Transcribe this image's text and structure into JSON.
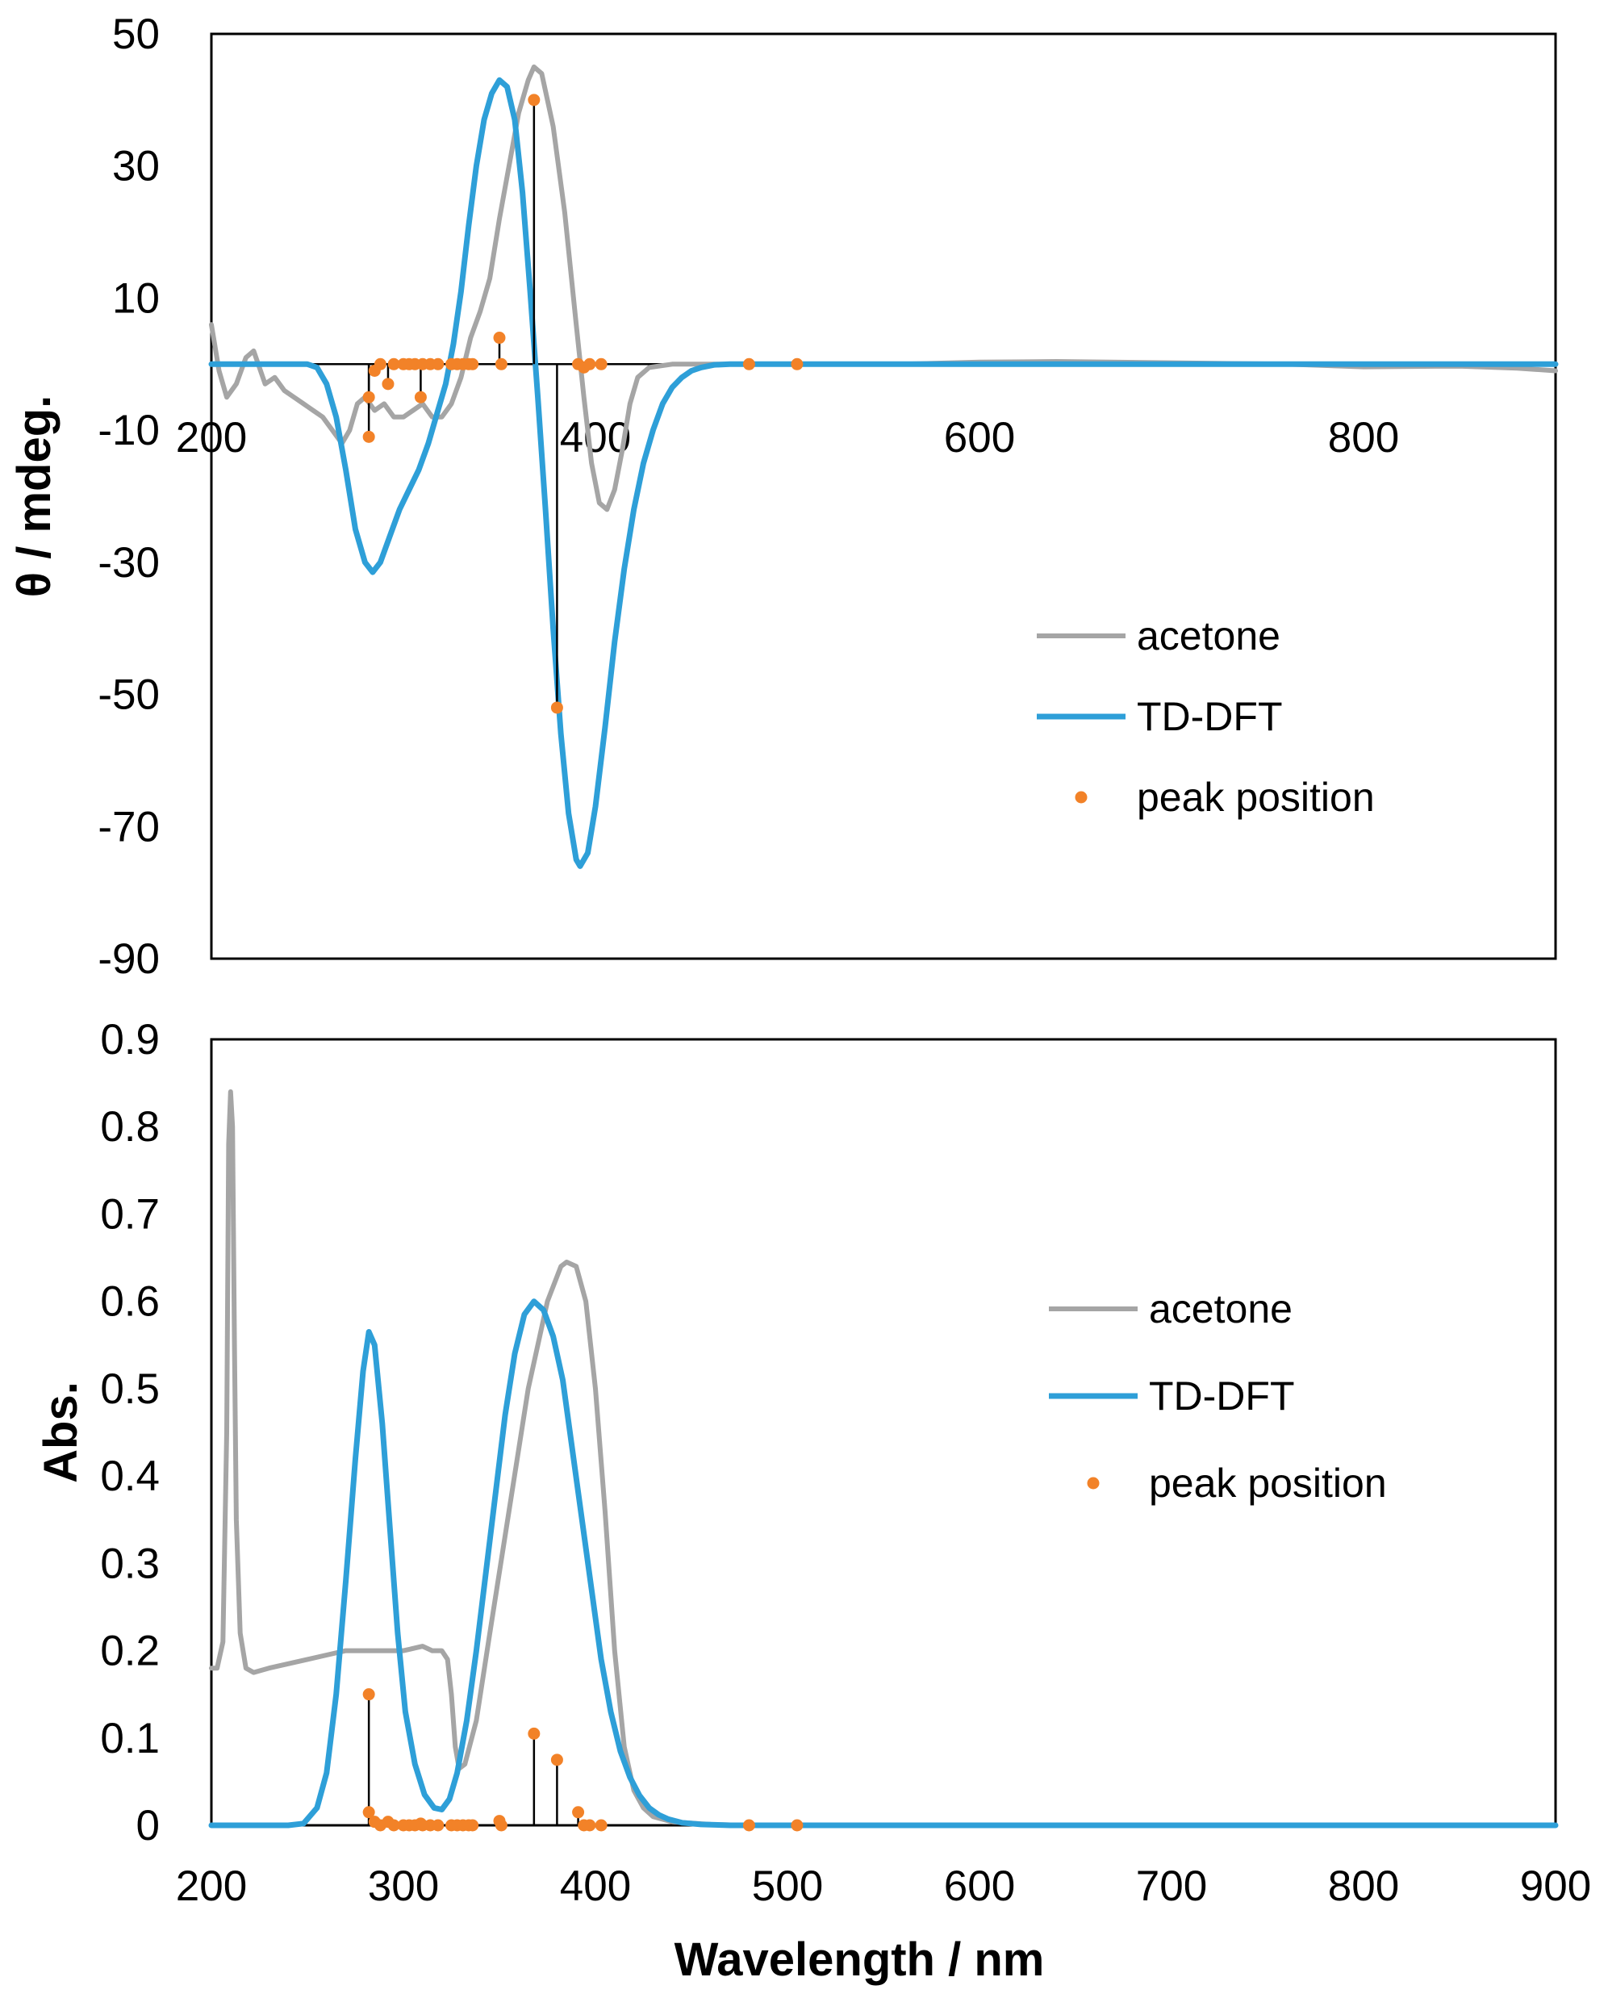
{
  "chart_data": [
    {
      "type": "line",
      "panel": "top",
      "title": "",
      "xlabel": "",
      "ylabel": "θ / mdeg.",
      "xlim": [
        200,
        900
      ],
      "ylim": [
        -90,
        50
      ],
      "yticks": [
        50,
        30,
        10,
        -10,
        -30,
        -50,
        -70,
        -90
      ],
      "xticks": [
        200,
        400,
        600,
        800
      ],
      "x_tick_labels_at_y": 0,
      "legend_position": "right",
      "series": [
        {
          "name": "acetone",
          "color": "#A5A5A5",
          "points": [
            [
              200,
              6
            ],
            [
              204,
              -1
            ],
            [
              208,
              -5
            ],
            [
              213,
              -3
            ],
            [
              218,
              1
            ],
            [
              222,
              2
            ],
            [
              228,
              -3
            ],
            [
              233,
              -2
            ],
            [
              238,
              -4
            ],
            [
              243,
              -5
            ],
            [
              248,
              -6
            ],
            [
              253,
              -7
            ],
            [
              258,
              -8
            ],
            [
              263,
              -10
            ],
            [
              268,
              -12
            ],
            [
              272,
              -10
            ],
            [
              276,
              -6
            ],
            [
              280,
              -5
            ],
            [
              285,
              -7
            ],
            [
              290,
              -6
            ],
            [
              295,
              -8
            ],
            [
              300,
              -8
            ],
            [
              305,
              -7
            ],
            [
              310,
              -6
            ],
            [
              315,
              -8
            ],
            [
              320,
              -8
            ],
            [
              325,
              -6
            ],
            [
              330,
              -2
            ],
            [
              335,
              4
            ],
            [
              340,
              8
            ],
            [
              345,
              13
            ],
            [
              350,
              22
            ],
            [
              355,
              30
            ],
            [
              360,
              38
            ],
            [
              365,
              43
            ],
            [
              368,
              45
            ],
            [
              372,
              44
            ],
            [
              378,
              36
            ],
            [
              384,
              23
            ],
            [
              390,
              6
            ],
            [
              394,
              -5
            ],
            [
              398,
              -15
            ],
            [
              402,
              -21
            ],
            [
              406,
              -22
            ],
            [
              410,
              -19
            ],
            [
              414,
              -13
            ],
            [
              418,
              -6
            ],
            [
              422,
              -2
            ],
            [
              428,
              -0.5
            ],
            [
              440,
              0
            ],
            [
              500,
              0
            ],
            [
              560,
              0
            ],
            [
              600,
              0.3
            ],
            [
              640,
              0.4
            ],
            [
              700,
              0.2
            ],
            [
              760,
              0
            ],
            [
              800,
              -0.4
            ],
            [
              850,
              -0.3
            ],
            [
              880,
              -0.6
            ],
            [
              900,
              -1
            ]
          ]
        },
        {
          "name": "TD-DFT",
          "color": "#2E9FD8",
          "points": [
            [
              200,
              0
            ],
            [
              250,
              0
            ],
            [
              255,
              -0.5
            ],
            [
              260,
              -3
            ],
            [
              265,
              -8
            ],
            [
              270,
              -16
            ],
            [
              275,
              -25
            ],
            [
              280,
              -30
            ],
            [
              284,
              -31.5
            ],
            [
              288,
              -30
            ],
            [
              293,
              -26
            ],
            [
              298,
              -22
            ],
            [
              303,
              -19
            ],
            [
              308,
              -16
            ],
            [
              313,
              -12
            ],
            [
              318,
              -7
            ],
            [
              322,
              -3
            ],
            [
              326,
              3
            ],
            [
              330,
              11
            ],
            [
              334,
              21
            ],
            [
              338,
              30
            ],
            [
              342,
              37
            ],
            [
              346,
              41
            ],
            [
              350,
              43
            ],
            [
              354,
              42
            ],
            [
              358,
              37
            ],
            [
              362,
              26
            ],
            [
              366,
              11
            ],
            [
              370,
              -5
            ],
            [
              374,
              -22
            ],
            [
              378,
              -40
            ],
            [
              382,
              -56
            ],
            [
              386,
              -68
            ],
            [
              390,
              -75
            ],
            [
              392,
              -76
            ],
            [
              396,
              -74
            ],
            [
              400,
              -67
            ],
            [
              405,
              -55
            ],
            [
              410,
              -42
            ],
            [
              415,
              -31
            ],
            [
              420,
              -22
            ],
            [
              425,
              -15
            ],
            [
              430,
              -10
            ],
            [
              435,
              -6
            ],
            [
              440,
              -3.5
            ],
            [
              445,
              -2
            ],
            [
              450,
              -1
            ],
            [
              455,
              -0.5
            ],
            [
              462,
              -0.1
            ],
            [
              470,
              0
            ],
            [
              900,
              0
            ]
          ]
        },
        {
          "name": "peak position",
          "color": "#F28228",
          "kind": "stick",
          "points": [
            [
              282,
              -11
            ],
            [
              282,
              -5
            ],
            [
              285,
              -1
            ],
            [
              288,
              0
            ],
            [
              292,
              -3
            ],
            [
              295,
              0
            ],
            [
              300,
              0
            ],
            [
              303,
              0
            ],
            [
              306,
              0
            ],
            [
              309,
              -5
            ],
            [
              310,
              0
            ],
            [
              314,
              0
            ],
            [
              318,
              0
            ],
            [
              325,
              0
            ],
            [
              328,
              0
            ],
            [
              331,
              0
            ],
            [
              334,
              0
            ],
            [
              336,
              0
            ],
            [
              350,
              4
            ],
            [
              351,
              0
            ],
            [
              368,
              40
            ],
            [
              380,
              -52
            ],
            [
              391,
              0
            ],
            [
              394,
              -0.5
            ],
            [
              397,
              0
            ],
            [
              403,
              0
            ],
            [
              480,
              0
            ],
            [
              505,
              0
            ]
          ]
        }
      ]
    },
    {
      "type": "line",
      "panel": "bottom",
      "title": "",
      "xlabel": "Wavelength / nm",
      "ylabel": "Abs.",
      "xlim": [
        200,
        900
      ],
      "ylim": [
        0,
        0.9
      ],
      "yticks": [
        0,
        0.1,
        0.2,
        0.3,
        0.4,
        0.5,
        0.6,
        0.7,
        0.8,
        0.9
      ],
      "xticks": [
        200,
        300,
        400,
        500,
        600,
        700,
        800,
        900
      ],
      "legend_position": "right",
      "series": [
        {
          "name": "acetone",
          "color": "#A5A5A5",
          "points": [
            [
              200,
              0.18
            ],
            [
              203,
              0.18
            ],
            [
              206,
              0.21
            ],
            [
              208,
              0.45
            ],
            [
              209,
              0.78
            ],
            [
              210,
              0.84
            ],
            [
              211,
              0.8
            ],
            [
              212,
              0.55
            ],
            [
              213,
              0.35
            ],
            [
              215,
              0.22
            ],
            [
              218,
              0.18
            ],
            [
              222,
              0.175
            ],
            [
              230,
              0.18
            ],
            [
              240,
              0.185
            ],
            [
              250,
              0.19
            ],
            [
              260,
              0.195
            ],
            [
              270,
              0.2
            ],
            [
              280,
              0.2
            ],
            [
              290,
              0.2
            ],
            [
              300,
              0.2
            ],
            [
              310,
              0.205
            ],
            [
              315,
              0.2
            ],
            [
              320,
              0.2
            ],
            [
              323,
              0.19
            ],
            [
              325,
              0.15
            ],
            [
              327,
              0.09
            ],
            [
              329,
              0.065
            ],
            [
              332,
              0.07
            ],
            [
              338,
              0.12
            ],
            [
              345,
              0.22
            ],
            [
              355,
              0.36
            ],
            [
              365,
              0.5
            ],
            [
              375,
              0.6
            ],
            [
              382,
              0.64
            ],
            [
              385,
              0.645
            ],
            [
              390,
              0.64
            ],
            [
              395,
              0.6
            ],
            [
              400,
              0.5
            ],
            [
              405,
              0.36
            ],
            [
              410,
              0.2
            ],
            [
              415,
              0.09
            ],
            [
              420,
              0.04
            ],
            [
              425,
              0.02
            ],
            [
              430,
              0.01
            ],
            [
              440,
              0.004
            ],
            [
              460,
              0.001
            ],
            [
              480,
              0
            ],
            [
              900,
              0
            ]
          ]
        },
        {
          "name": "TD-DFT",
          "color": "#2E9FD8",
          "points": [
            [
              200,
              0
            ],
            [
              240,
              0
            ],
            [
              248,
              0.002
            ],
            [
              255,
              0.02
            ],
            [
              260,
              0.06
            ],
            [
              265,
              0.15
            ],
            [
              270,
              0.28
            ],
            [
              275,
              0.42
            ],
            [
              279,
              0.52
            ],
            [
              282,
              0.565
            ],
            [
              285,
              0.55
            ],
            [
              289,
              0.46
            ],
            [
              293,
              0.34
            ],
            [
              297,
              0.22
            ],
            [
              301,
              0.13
            ],
            [
              306,
              0.07
            ],
            [
              311,
              0.035
            ],
            [
              316,
              0.02
            ],
            [
              320,
              0.018
            ],
            [
              324,
              0.03
            ],
            [
              328,
              0.06
            ],
            [
              333,
              0.12
            ],
            [
              338,
              0.2
            ],
            [
              343,
              0.29
            ],
            [
              348,
              0.38
            ],
            [
              353,
              0.47
            ],
            [
              358,
              0.54
            ],
            [
              363,
              0.585
            ],
            [
              368,
              0.6
            ],
            [
              373,
              0.59
            ],
            [
              378,
              0.56
            ],
            [
              383,
              0.51
            ],
            [
              388,
              0.43
            ],
            [
              393,
              0.35
            ],
            [
              398,
              0.27
            ],
            [
              403,
              0.19
            ],
            [
              408,
              0.13
            ],
            [
              413,
              0.085
            ],
            [
              418,
              0.055
            ],
            [
              423,
              0.034
            ],
            [
              428,
              0.02
            ],
            [
              433,
              0.012
            ],
            [
              438,
              0.007
            ],
            [
              445,
              0.003
            ],
            [
              455,
              0.001
            ],
            [
              470,
              0
            ],
            [
              900,
              0
            ]
          ]
        },
        {
          "name": "peak position",
          "color": "#F28228",
          "kind": "stick",
          "points": [
            [
              282,
              0.15
            ],
            [
              282,
              0.015
            ],
            [
              285,
              0.004
            ],
            [
              288,
              0
            ],
            [
              292,
              0.004
            ],
            [
              295,
              0
            ],
            [
              300,
              0
            ],
            [
              303,
              0
            ],
            [
              306,
              0
            ],
            [
              309,
              0.002
            ],
            [
              310,
              0
            ],
            [
              314,
              0
            ],
            [
              318,
              0
            ],
            [
              325,
              0
            ],
            [
              328,
              0
            ],
            [
              331,
              0
            ],
            [
              334,
              0
            ],
            [
              336,
              0
            ],
            [
              350,
              0.005
            ],
            [
              351,
              0
            ],
            [
              368,
              0.105
            ],
            [
              380,
              0.075
            ],
            [
              391,
              0.015
            ],
            [
              394,
              0
            ],
            [
              397,
              0
            ],
            [
              403,
              0
            ],
            [
              480,
              0
            ],
            [
              505,
              0
            ]
          ]
        }
      ]
    }
  ]
}
